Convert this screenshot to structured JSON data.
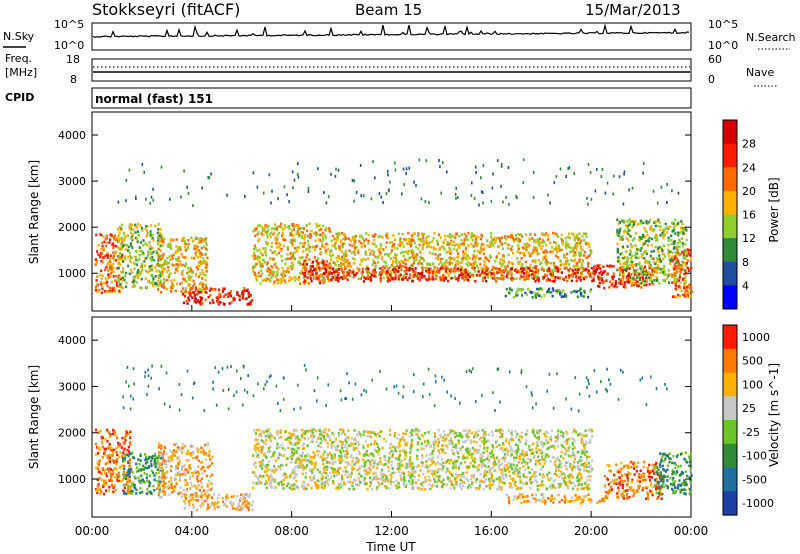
{
  "header": {
    "station": "Stokkseyri (fitACF)",
    "beam": "Beam 15",
    "date": "15/Mar/2013"
  },
  "noise_panel": {
    "left_label": "N.Sky",
    "right_label": "N.Search",
    "left_ticks": [
      "10^5",
      "10^0"
    ],
    "right_ticks": [
      "10^5",
      "10^0"
    ]
  },
  "freq_panel": {
    "left_label_1": "Freq.",
    "left_label_2": "[MHz]",
    "left_ticks": [
      "18",
      "8"
    ],
    "right_label": "Nave",
    "right_ticks": [
      "60",
      "0"
    ]
  },
  "cpid_panel": {
    "label": "CPID",
    "mode": "normal (fast) 151"
  },
  "time_axis": {
    "ticks": [
      "00:00",
      "04:00",
      "08:00",
      "12:00",
      "16:00",
      "20:00",
      "00:00"
    ],
    "label": "Time UT"
  },
  "range_axis": {
    "label": "Slant Range [km]",
    "ticks": [
      "1000",
      "2000",
      "3000",
      "4000"
    ]
  },
  "chart_data": [
    {
      "type": "heatmap",
      "quantity": "power",
      "colorbar_label": "Power [dB]",
      "colorbar_ticks": [
        "4",
        "8",
        "12",
        "16",
        "20",
        "24",
        "28"
      ],
      "colors": [
        "#0000ff",
        "#1f4fa0",
        "#2e8b3a",
        "#8fce2b",
        "#ffb000",
        "#ff6a00",
        "#ff1a00",
        "#d40000"
      ],
      "x_range_hours": [
        0,
        24
      ],
      "y_range_km": [
        180,
        4500
      ],
      "scatter_regions": [
        {
          "t0": 0.1,
          "t1": 1.2,
          "r0": 600,
          "r1": 1900,
          "level": 5
        },
        {
          "t0": 1.0,
          "t1": 2.8,
          "r0": 700,
          "r1": 2100,
          "level": 3
        },
        {
          "t0": 2.6,
          "t1": 4.6,
          "r0": 600,
          "r1": 1800,
          "level": 4
        },
        {
          "t0": 3.6,
          "t1": 6.4,
          "r0": 350,
          "r1": 700,
          "level": 6
        },
        {
          "t0": 6.4,
          "t1": 9.5,
          "r0": 800,
          "r1": 2100,
          "level": 4
        },
        {
          "t0": 8.4,
          "t1": 9.5,
          "r0": 800,
          "r1": 1300,
          "level": 6
        },
        {
          "t0": 9.5,
          "t1": 20.0,
          "r0": 900,
          "r1": 1900,
          "level": 4
        },
        {
          "t0": 9.5,
          "t1": 20.5,
          "r0": 850,
          "r1": 1150,
          "level": 6
        },
        {
          "t0": 16.5,
          "t1": 20.0,
          "r0": 500,
          "r1": 700,
          "level": 2
        },
        {
          "t0": 20.0,
          "t1": 22.5,
          "r0": 700,
          "r1": 1200,
          "level": 6
        },
        {
          "t0": 21.0,
          "t1": 23.8,
          "r0": 800,
          "r1": 2200,
          "level": 3
        },
        {
          "t0": 23.2,
          "t1": 24.0,
          "r0": 500,
          "r1": 1600,
          "level": 5
        }
      ]
    },
    {
      "type": "heatmap",
      "quantity": "velocity",
      "colorbar_label": "Velocity [m s^-1]",
      "colorbar_ticks": [
        "1000",
        "500",
        "100",
        "25",
        "-25",
        "-100",
        "-500",
        "-1000"
      ],
      "colors": [
        "#1f3fa8",
        "#1f6f9f",
        "#2e8b3a",
        "#6cc42b",
        "#c8c8c8",
        "#ffb000",
        "#ff7a00",
        "#ff1a00"
      ],
      "x_range_hours": [
        0,
        24
      ],
      "y_range_km": [
        180,
        4500
      ],
      "scatter_regions": [
        {
          "t0": 0.1,
          "t1": 1.5,
          "r0": 700,
          "r1": 2100,
          "level": 6
        },
        {
          "t0": 1.2,
          "t1": 2.8,
          "r0": 700,
          "r1": 1600,
          "level": 2
        },
        {
          "t0": 2.6,
          "t1": 4.8,
          "r0": 600,
          "r1": 1800,
          "level": 5
        },
        {
          "t0": 3.6,
          "t1": 6.4,
          "r0": 350,
          "r1": 700,
          "level": 5
        },
        {
          "t0": 6.4,
          "t1": 20.0,
          "r0": 800,
          "r1": 2100,
          "level": 4
        },
        {
          "t0": 16.5,
          "t1": 20.5,
          "r0": 500,
          "r1": 700,
          "level": 5
        },
        {
          "t0": 20.5,
          "t1": 22.8,
          "r0": 600,
          "r1": 1400,
          "level": 6
        },
        {
          "t0": 22.5,
          "t1": 24.0,
          "r0": 700,
          "r1": 1600,
          "level": 2
        }
      ]
    }
  ]
}
